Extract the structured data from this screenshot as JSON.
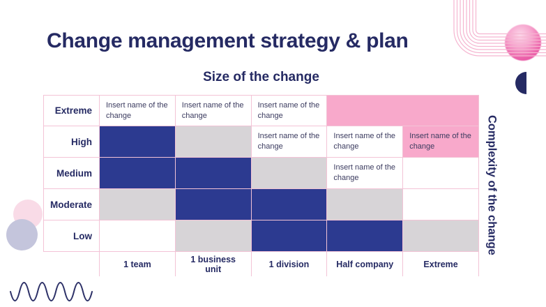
{
  "slide": {
    "title": "Change management strategy & plan"
  },
  "matrix": {
    "x_axis_label": "Size of the change",
    "y_axis_label": "Complexity of the change",
    "placeholder_text": "Insert name of the change",
    "row_labels": [
      "Extreme",
      "High",
      "Medium",
      "Moderate",
      "Low"
    ],
    "col_labels": [
      "1 team",
      "1 business unit",
      "1 division",
      "Half company",
      "Extreme"
    ],
    "cells": [
      [
        "placeholder",
        "placeholder",
        "placeholder",
        "pink-span2"
      ],
      [
        "blue",
        "gray",
        "placeholder",
        "placeholder",
        "pink-placeholder"
      ],
      [
        "blue",
        "blue",
        "gray",
        "placeholder",
        "empty"
      ],
      [
        "gray",
        "blue",
        "blue",
        "gray",
        "empty"
      ],
      [
        "empty",
        "gray",
        "blue",
        "blue",
        "gray"
      ]
    ]
  },
  "colors": {
    "navy": "#252a63",
    "cell_blue": "#2c3a90",
    "cell_gray": "#d7d4d7",
    "cell_pink": "#f8a9cb",
    "cell_border": "#f3c3d6",
    "cell_text": "#3b3b5f",
    "line_pink": "#f5b5d0"
  },
  "decorations": [
    "sphere-decoration",
    "pipe-lines-decoration",
    "half-circle-decoration",
    "pink-circle-decoration",
    "lavender-circle-decoration",
    "wave-line-decoration"
  ]
}
